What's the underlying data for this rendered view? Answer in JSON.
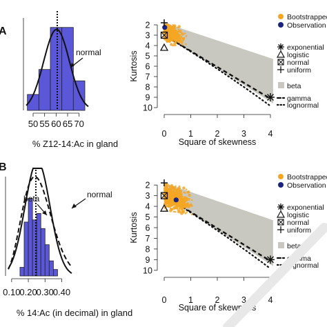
{
  "panels": [
    {
      "label": "A",
      "histogram": {
        "type": "bar",
        "xlabel": "% Z12-14:Ac in gland",
        "xticks": [
          50,
          55,
          60,
          65,
          70
        ],
        "yticks_visible": [],
        "xlim": [
          47,
          74
        ],
        "ylim": [
          0,
          0.085
        ],
        "bins": [
          {
            "x0": 47.5,
            "x1": 52.5,
            "density": 0.014
          },
          {
            "x0": 52.5,
            "x1": 57.5,
            "density": 0.036
          },
          {
            "x0": 57.5,
            "x1": 62.5,
            "density": 0.073
          },
          {
            "x0": 62.5,
            "x1": 67.5,
            "density": 0.073
          },
          {
            "x0": 67.5,
            "x1": 72.5,
            "density": 0.026
          }
        ],
        "curves": [
          {
            "name": "normal",
            "kind": "normal",
            "mean": 60.2,
            "sd": 5.6,
            "label": "normal"
          }
        ],
        "mean_line": 60.5,
        "bar_color": "#5a57d8"
      },
      "cullen_frey": {
        "type": "scatter",
        "xlabel": "Square of skewness",
        "ylabel": "Kurtosis",
        "xlim": [
          0,
          4
        ],
        "xticks": [
          0,
          1,
          2,
          3,
          4
        ],
        "yticks": [
          2,
          3,
          4,
          5,
          6,
          7,
          8,
          9,
          10
        ],
        "observation": {
          "x": 0.02,
          "y": 2.25
        },
        "bootstrap_cloud": {
          "center_x": 0.22,
          "center_y": 2.75,
          "spread_x": 0.25,
          "spread_y": 0.55,
          "count": 520
        }
      }
    },
    {
      "label": "B",
      "histogram": {
        "type": "bar",
        "xlabel": "% 14:Ac (in decimal) in gland",
        "xticks": [
          "0.10",
          "0.20",
          "0.30",
          "0.40"
        ],
        "yticks_visible": [],
        "xlim": [
          0.08,
          0.46
        ],
        "ylim": [
          0,
          4.8
        ],
        "bins": [
          {
            "x0": 0.15,
            "x1": 0.175,
            "density": 0.4
          },
          {
            "x0": 0.175,
            "x1": 0.2,
            "density": 2.5
          },
          {
            "x0": 0.2,
            "x1": 0.225,
            "density": 3.6
          },
          {
            "x0": 0.225,
            "x1": 0.25,
            "density": 2.6
          },
          {
            "x0": 0.25,
            "x1": 0.275,
            "density": 2.9
          },
          {
            "x0": 0.275,
            "x1": 0.3,
            "density": 2.2
          },
          {
            "x0": 0.3,
            "x1": 0.325,
            "density": 1.45
          },
          {
            "x0": 0.325,
            "x1": 0.35,
            "density": 0.7
          },
          {
            "x0": 0.35,
            "x1": 0.375,
            "density": 0.3
          }
        ],
        "curves": [
          {
            "name": "beta",
            "kind": "beta",
            "a": 6.5,
            "b": 18.5,
            "label": "beta"
          },
          {
            "name": "normal",
            "kind": "normal",
            "mean": 0.255,
            "sd": 0.075,
            "label": "normal"
          }
        ],
        "mean_line": 0.245,
        "bar_color": "#5a57d8"
      },
      "cullen_frey": {
        "type": "scatter",
        "xlabel": "Square of skewness",
        "ylabel": "Kurtosis",
        "xlim": [
          0,
          4
        ],
        "xticks": [
          0,
          1,
          2,
          3,
          4
        ],
        "yticks": [
          2,
          3,
          4,
          5,
          6,
          7,
          8,
          9,
          10
        ],
        "observation": {
          "x": 0.45,
          "y": 3.4
        },
        "bootstrap_cloud": {
          "center_x": 0.35,
          "center_y": 3.2,
          "spread_x": 0.35,
          "spread_y": 0.7,
          "count": 620
        }
      }
    }
  ],
  "legend": {
    "points": [
      {
        "label": "Bootstrapped values",
        "color": "#f5a623"
      },
      {
        "label": "Observation",
        "color": "#1a237e"
      }
    ],
    "theoretical": [
      {
        "label": "exponential",
        "symbol": "star"
      },
      {
        "label": "logistic",
        "symbol": "triangle"
      },
      {
        "label": "normal",
        "symbol": "boxx"
      },
      {
        "label": "uniform",
        "symbol": "plus"
      }
    ],
    "areas": [
      {
        "label": "beta",
        "color": "#c8c8c0"
      }
    ],
    "lines": [
      {
        "label": "gamma",
        "style": "dash"
      },
      {
        "label": "lognormal",
        "style": "dot"
      }
    ]
  },
  "colors": {
    "bootstrap": "#f5a623",
    "observation": "#1a237e",
    "beta_region": "#c8c8c0",
    "bars": "#5a57d8"
  }
}
